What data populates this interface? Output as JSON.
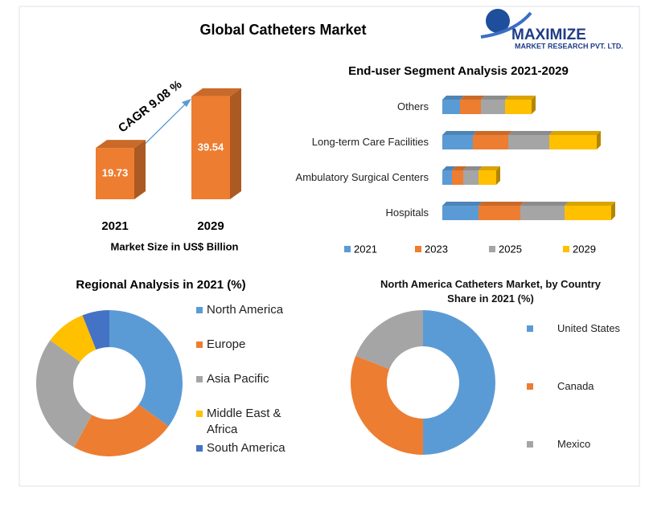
{
  "logo": {
    "name": "MAXIMIZE",
    "tagline": "MARKET RESEARCH PVT. LTD."
  },
  "chart_data": [
    {
      "type": "bar",
      "title": "Global Catheters Market",
      "categories": [
        "2021",
        "2029"
      ],
      "values": [
        19.73,
        39.54
      ],
      "color": "#ed7d31",
      "x_label": "Market Size in US$ Billion",
      "annotation": "CAGR 9.08 %"
    },
    {
      "type": "stacked-barh",
      "title": "End-user Segment Analysis 2021-2029",
      "categories": [
        "Others",
        "Long-term Care Facilities",
        "Ambulatory Surgical Centers",
        "Hospitals"
      ],
      "series": [
        {
          "name": "2021",
          "color": "#5b9bd5",
          "values": [
            22,
            38,
            12,
            45
          ]
        },
        {
          "name": "2023",
          "color": "#ed7d31",
          "values": [
            26,
            44,
            14,
            52
          ]
        },
        {
          "name": "2025",
          "color": "#a5a5a5",
          "values": [
            30,
            51,
            19,
            55
          ]
        },
        {
          "name": "2029",
          "color": "#ffc000",
          "values": [
            33,
            59,
            22,
            58
          ]
        }
      ],
      "legend": "bottom"
    },
    {
      "type": "donut",
      "title": "Regional Analysis in 2021 (%)",
      "categories": [
        "North America",
        "Europe",
        "Asia Pacific",
        "Middle East & Africa",
        "South America"
      ],
      "values": [
        35,
        23,
        27,
        9,
        6
      ],
      "colors": [
        "#5b9bd5",
        "#ed7d31",
        "#a5a5a5",
        "#ffc000",
        "#4472c4"
      ],
      "legend": "right"
    },
    {
      "type": "donut",
      "title": "North America Catheters Market, by Country Share in 2021 (%)",
      "categories": [
        "United States",
        "Canada",
        "Mexico"
      ],
      "values": [
        50,
        31,
        19
      ],
      "colors": [
        "#5b9bd5",
        "#ed7d31",
        "#a5a5a5"
      ],
      "legend": "right"
    }
  ]
}
